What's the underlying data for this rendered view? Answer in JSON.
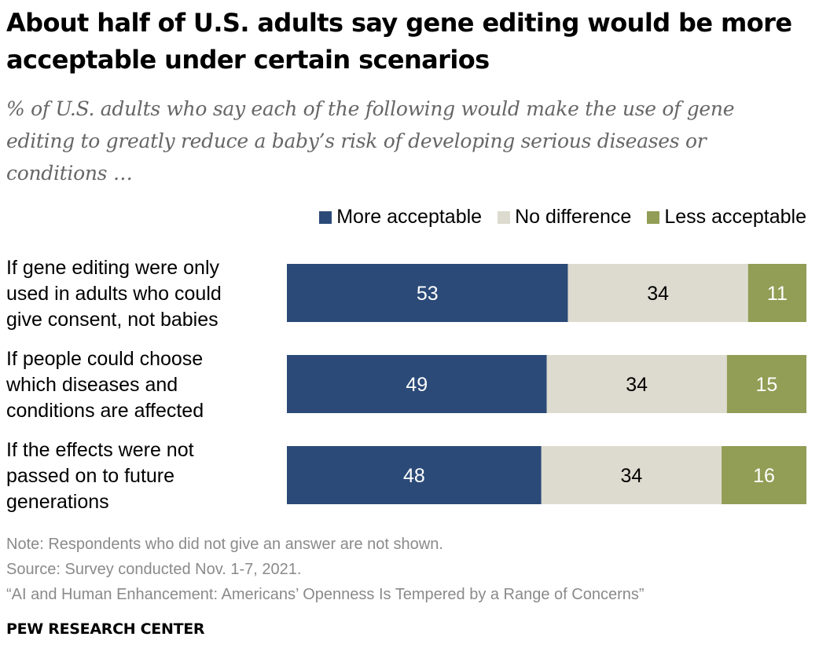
{
  "header": {
    "title": "About half of U.S. adults say gene editing would be more acceptable under certain scenarios",
    "subtitle": "% of U.S. adults who say each of the following would make the use of gene editing to greatly reduce a baby’s risk of developing serious diseases or conditions …"
  },
  "legend": {
    "more": "More acceptable",
    "same": "No difference",
    "less": "Less acceptable"
  },
  "colors": {
    "more": "#2b4a78",
    "same": "#dddbcf",
    "less": "#929d55"
  },
  "chart_data": {
    "type": "bar",
    "orientation": "horizontal",
    "stacked": true,
    "categories": [
      "If gene editing were only used in adults who could give consent, not babies",
      "If people could choose which diseases and conditions are affected",
      "If the effects were not passed on to future generations"
    ],
    "category_lines": [
      [
        "If gene editing were only",
        "used in adults who could",
        "give consent, not babies"
      ],
      [
        "If people could choose",
        "which diseases and",
        "conditions are affected"
      ],
      [
        "If the effects were not",
        "passed on to future",
        "generations"
      ]
    ],
    "series": [
      {
        "name": "More acceptable",
        "values": [
          53,
          49,
          48
        ]
      },
      {
        "name": "No difference",
        "values": [
          34,
          34,
          34
        ]
      },
      {
        "name": "Less acceptable",
        "values": [
          11,
          15,
          16
        ]
      }
    ],
    "legend_position": "top-right"
  },
  "notes": {
    "note": "Note: Respondents who did not give an answer are not shown.",
    "source": "Source: Survey conducted Nov. 1-7, 2021.",
    "report": "“AI and Human Enhancement: Americans’ Openness Is Tempered by a Range of Concerns”"
  },
  "brand": "PEW RESEARCH CENTER"
}
